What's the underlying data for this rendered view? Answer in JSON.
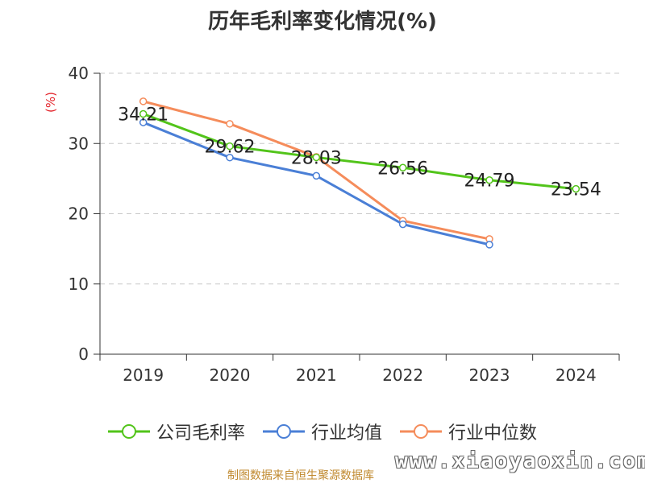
{
  "title": "历年毛利率变化情况(%)",
  "footer": "制图数据来自恒生聚源数据库",
  "watermark": "www.xiaoyaoxin.com",
  "chart_data": {
    "type": "line",
    "title": "历年毛利率变化情况(%)",
    "ylabel": "(%)",
    "xlabel": "",
    "categories": [
      "2019",
      "2020",
      "2021",
      "2022",
      "2023",
      "2024"
    ],
    "ylim": [
      0,
      40
    ],
    "yticks": [
      0,
      10,
      20,
      30,
      40
    ],
    "grid": "horizontal dashed",
    "legend_position": "bottom",
    "series": [
      {
        "name": "公司毛利率",
        "color": "#52c41a",
        "values": [
          34.21,
          29.62,
          28.03,
          26.56,
          24.79,
          23.54
        ],
        "labels": [
          "34.21",
          "29.62",
          "28.03",
          "26.56",
          "24.79",
          "23.54"
        ]
      },
      {
        "name": "行业均值",
        "color": "#4a7fd6",
        "values": [
          33.0,
          28.0,
          25.4,
          18.5,
          15.6,
          null
        ]
      },
      {
        "name": "行业中位数",
        "color": "#f58c5b",
        "values": [
          36.0,
          32.8,
          28.1,
          19.0,
          16.4,
          null
        ]
      }
    ]
  }
}
